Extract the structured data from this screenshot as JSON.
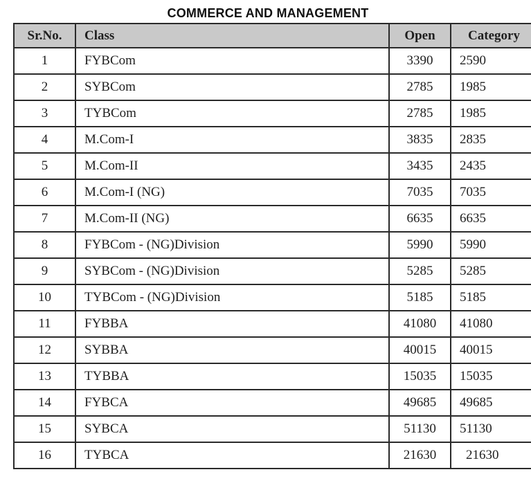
{
  "title": "COMMERCE AND MANAGEMENT",
  "table": {
    "columns": [
      "Sr.No.",
      "Class",
      "Open",
      "Category"
    ],
    "rows": [
      {
        "sr": "1",
        "class": "FYBCom",
        "open": "3390",
        "category": "2590"
      },
      {
        "sr": "2",
        "class": "SYBCom",
        "open": "2785",
        "category": "1985"
      },
      {
        "sr": "3",
        "class": "TYBCom",
        "open": "2785",
        "category": "1985"
      },
      {
        "sr": "4",
        "class": "M.Com-I",
        "open": "3835",
        "category": "2835"
      },
      {
        "sr": "5",
        "class": "M.Com-II",
        "open": "3435",
        "category": "2435"
      },
      {
        "sr": "6",
        "class": "M.Com-I (NG)",
        "open": "7035",
        "category": "7035"
      },
      {
        "sr": "7",
        "class": "M.Com-II (NG)",
        "open": "6635",
        "category": "6635"
      },
      {
        "sr": "8",
        "class": "FYBCom - (NG)Division",
        "open": "5990",
        "category": "5990"
      },
      {
        "sr": "9",
        "class": "SYBCom - (NG)Division",
        "open": "5285",
        "category": "5285"
      },
      {
        "sr": "10",
        "class": "TYBCom - (NG)Division",
        "open": "5185",
        "category": "5185"
      },
      {
        "sr": "11",
        "class": "FYBBA",
        "open": "41080",
        "category": "41080"
      },
      {
        "sr": "12",
        "class": "SYBBA",
        "open": "40015",
        "category": "40015"
      },
      {
        "sr": "13",
        "class": "TYBBA",
        "open": "15035",
        "category": "15035"
      },
      {
        "sr": "14",
        "class": "FYBCA",
        "open": "49685",
        "category": "49685"
      },
      {
        "sr": "15",
        "class": "SYBCA",
        "open": "51130",
        "category": "51130"
      },
      {
        "sr": "16",
        "class": "TYBCA",
        "open": "21630",
        "category": "21630"
      }
    ]
  },
  "colors": {
    "header_bg": "#c9c9c9",
    "border": "#2a2a2a",
    "text": "#1f1f1f"
  }
}
